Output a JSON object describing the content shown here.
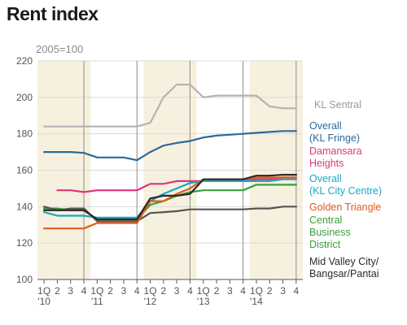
{
  "title": "Rent index",
  "subtitle": "2005=100",
  "chart_data": {
    "type": "line",
    "title": "Rent index",
    "subtitle": "2005=100",
    "xlabel": "",
    "ylabel": "",
    "ylim": [
      100,
      220
    ],
    "yticks": [
      100,
      120,
      140,
      160,
      180,
      200,
      220
    ],
    "grid": true,
    "shaded_years": [
      "'10",
      "'12",
      "'14"
    ],
    "x": [
      "1Q '10",
      "2",
      "3",
      "4",
      "1Q '11",
      "2",
      "3",
      "4",
      "1Q '12",
      "2",
      "3",
      "4",
      "1Q '13",
      "2",
      "3",
      "4",
      "1Q '14",
      "2",
      "3",
      "4"
    ],
    "x_tick_labels": [
      "1Q",
      "2",
      "3",
      "4",
      "1Q",
      "2",
      "3",
      "4",
      "1Q",
      "2",
      "3",
      "4",
      "1Q",
      "2",
      "3",
      "4",
      "1Q",
      "2",
      "3",
      "4"
    ],
    "year_labels": [
      "'10",
      "'11",
      "'12",
      "'13",
      "'14"
    ],
    "series": [
      {
        "name": "KL Sentral",
        "color": "#b3b3b3",
        "values": [
          184,
          184,
          184,
          184,
          184,
          184,
          184,
          184,
          186,
          200,
          207,
          207,
          200,
          201,
          201,
          201,
          201,
          195,
          194,
          194
        ]
      },
      {
        "name": "Overall (KL Fringe)",
        "color": "#2b6a9a",
        "values": [
          170,
          170,
          170,
          169.5,
          167,
          167,
          167,
          165.5,
          170,
          173.5,
          175,
          176,
          178,
          179,
          179.5,
          180,
          180.5,
          181,
          181.5,
          181.5
        ]
      },
      {
        "name": "Damansara Heights",
        "color": "#e3317f",
        "values": [
          null,
          149,
          149,
          148,
          149,
          149,
          149,
          149,
          152.5,
          152.5,
          154,
          154,
          154,
          154,
          154,
          154,
          155,
          155,
          156,
          156
        ]
      },
      {
        "name": "Overall (KL City Centre)",
        "color": "#1aa6c4",
        "values": [
          137,
          135,
          135,
          135,
          134,
          134,
          134,
          134,
          143,
          147,
          150,
          153,
          154,
          154,
          154,
          154,
          154,
          154,
          155,
          155
        ]
      },
      {
        "name": "Golden Triangle",
        "color": "#e05a1e",
        "values": [
          128,
          128,
          128,
          128,
          131,
          131,
          131,
          131,
          143,
          143,
          147,
          150,
          155,
          155,
          155,
          155,
          156,
          156,
          156,
          156
        ]
      },
      {
        "name": "Central Business District",
        "color": "#3a9e3a",
        "values": [
          139,
          139,
          138,
          138,
          133,
          133,
          133,
          133,
          141,
          143,
          146,
          148,
          149,
          149,
          149,
          149,
          152,
          152,
          152,
          152
        ]
      },
      {
        "name": "Mid Valley City/ Bangsar/Pantai",
        "color": "#2a2a2a",
        "values": [
          138,
          138,
          138,
          138,
          133,
          133,
          133,
          133,
          144.5,
          146,
          146,
          147,
          155,
          155,
          155,
          155,
          157,
          157,
          157.5,
          157.5
        ]
      },
      {
        "name": "Mid Valley City/ Bangsar/Pantai (lower)",
        "color": "#555555",
        "values": [
          140,
          138,
          139,
          139,
          132,
          132,
          132,
          132,
          136.5,
          137,
          137.5,
          138.5,
          138.5,
          138.5,
          138.5,
          138.5,
          139,
          139,
          140,
          140
        ]
      }
    ]
  },
  "legend": [
    {
      "lines": [
        "KL Sentral"
      ],
      "color": "#9a9a9a"
    },
    {
      "lines": [
        "Overall",
        "(KL Fringe)"
      ],
      "color": "#2b6a9a"
    },
    {
      "lines": [
        "Damansara",
        "Heights"
      ],
      "color": "#e3317f"
    },
    {
      "lines": [
        "Overall",
        "(KL City Centre)"
      ],
      "color": "#1aa6c4"
    },
    {
      "lines": [
        "Golden Triangle"
      ],
      "color": "#e05a1e"
    },
    {
      "lines": [
        "Central",
        "Business",
        "District"
      ],
      "color": "#3a9e3a"
    },
    {
      "lines": [
        "Mid Valley City/",
        "Bangsar/Pantai"
      ],
      "color": "#2a2a2a"
    }
  ]
}
